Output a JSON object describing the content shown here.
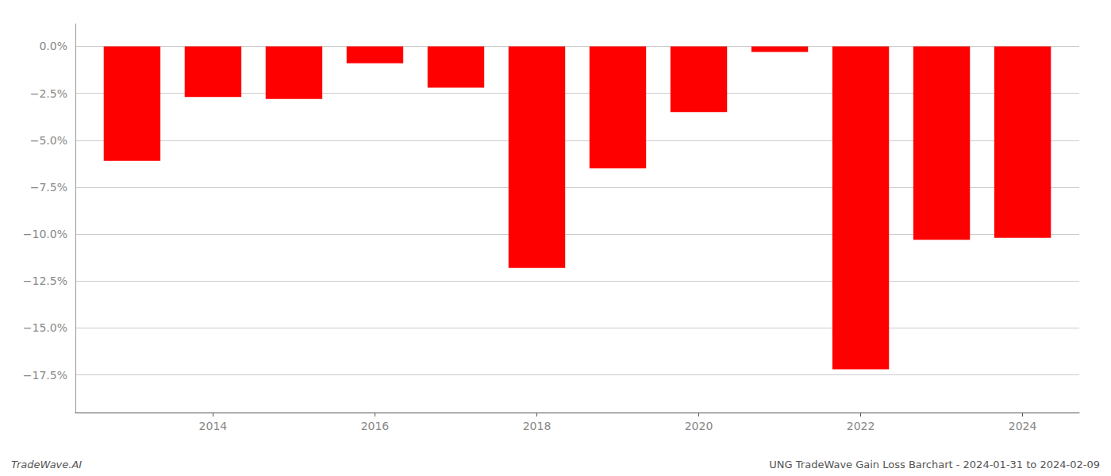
{
  "chart_data": {
    "type": "bar",
    "x": [
      2013,
      2014,
      2015,
      2016,
      2017,
      2018,
      2019,
      2020,
      2021,
      2022,
      2023,
      2024
    ],
    "values": [
      -6.1,
      -2.7,
      -2.8,
      -0.9,
      -2.2,
      -11.8,
      -6.5,
      -3.5,
      -0.3,
      -17.2,
      -10.3,
      -10.2
    ],
    "color": "#ff0000",
    "xlim": [
      2012.3,
      2024.7
    ],
    "xticks": [
      2014,
      2016,
      2018,
      2020,
      2022,
      2024
    ],
    "ylim": [
      -19.5,
      1.2
    ],
    "yticks": [
      {
        "value": 0.0,
        "label": "0.0%"
      },
      {
        "value": -2.5,
        "label": "−2.5%"
      },
      {
        "value": -5.0,
        "label": "−5.0%"
      },
      {
        "value": -7.5,
        "label": "−7.5%"
      },
      {
        "value": -10.0,
        "label": "−10.0%"
      },
      {
        "value": -12.5,
        "label": "−12.5%"
      },
      {
        "value": -15.0,
        "label": "−15.0%"
      },
      {
        "value": -17.5,
        "label": "−17.5%"
      }
    ],
    "grid": true,
    "annotations": [
      "TradeWave.AI",
      "UNG TradeWave Gain Loss Barchart - 2024-01-31 to 2024-02-09"
    ]
  }
}
